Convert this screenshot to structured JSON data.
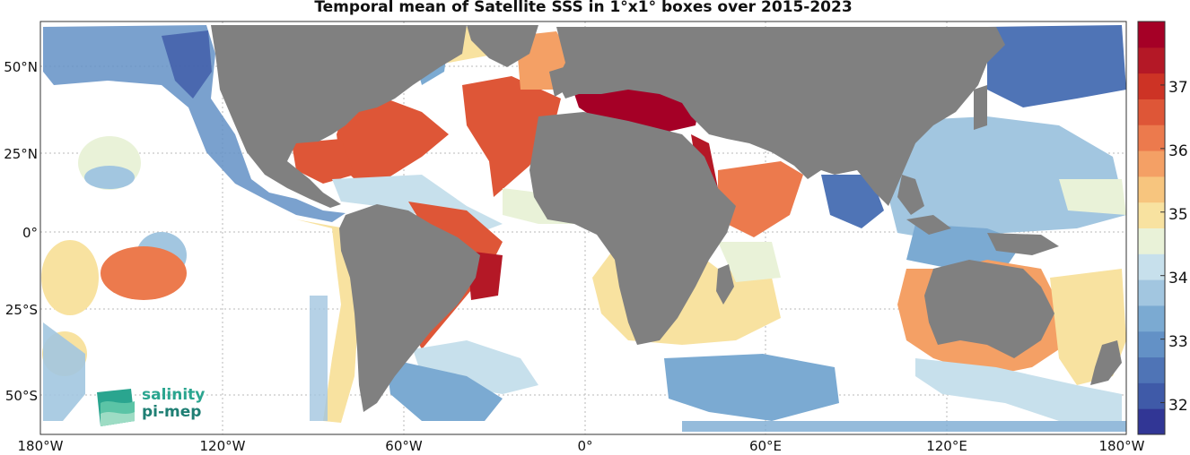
{
  "title": "Temporal mean of Satellite SSS in 1°x1° boxes over 2015-2023",
  "x_ticks": [
    "180°W",
    "120°W",
    "60°W",
    "0°",
    "60°E",
    "120°E",
    "180°W"
  ],
  "y_ticks": [
    "50°N",
    "25°N",
    "0°",
    "25°S",
    "50°S"
  ],
  "colorbar": {
    "ticks": [
      "37",
      "36",
      "35",
      "34",
      "33",
      "32"
    ],
    "tick_values": [
      37,
      36,
      35,
      34,
      33,
      32
    ],
    "range": [
      31.5,
      38
    ],
    "colors": [
      "#313695",
      "#3f5aa8",
      "#4f74b6",
      "#6391c6",
      "#7baad2",
      "#a2c6e0",
      "#c7e0ec",
      "#e9f2d8",
      "#f8e2a0",
      "#f7c57e",
      "#f4a065",
      "#ec7a4d",
      "#de5637",
      "#cd3325",
      "#b41826",
      "#a50026"
    ]
  },
  "land_color": "#808080",
  "logo": {
    "line1": "salinity",
    "line2": "pi-mep"
  }
}
